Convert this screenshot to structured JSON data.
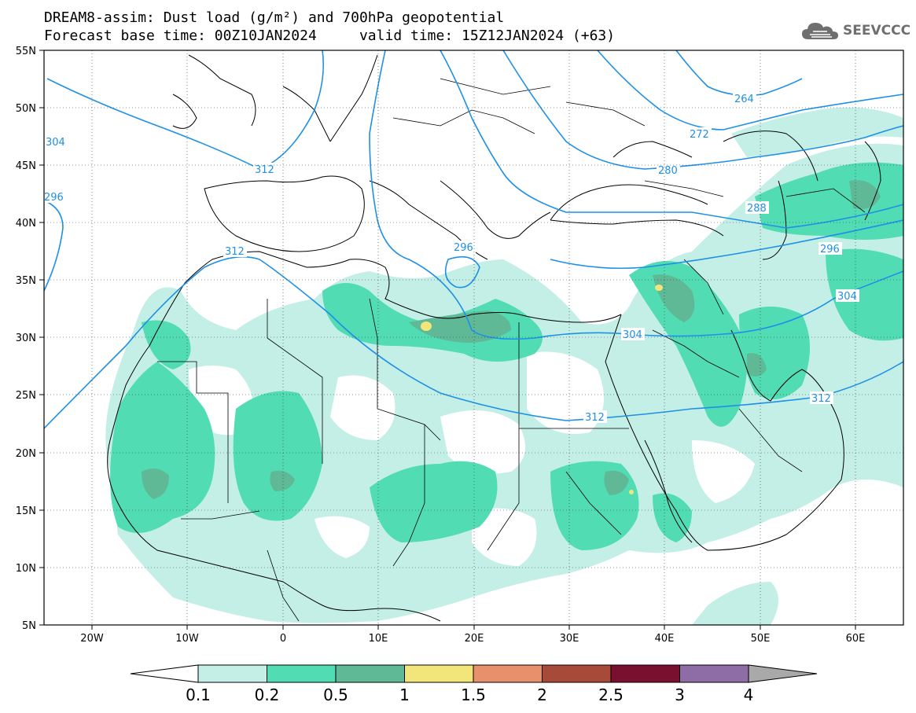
{
  "title": {
    "line1": "DREAM8-assim: Dust load (g/m²) and 700hPa geopotential",
    "line2": "Forecast base time: 00Z10JAN2024     valid time: 15Z12JAN2024 (+63)"
  },
  "logo": {
    "text": "SEEVCCC",
    "icon": "cloud-icon"
  },
  "axes": {
    "lat_labels": [
      "55N",
      "50N",
      "45N",
      "40N",
      "35N",
      "30N",
      "25N",
      "20N",
      "15N",
      "10N",
      "5N"
    ],
    "lon_labels": [
      "20W",
      "10W",
      "0",
      "10E",
      "20E",
      "30E",
      "40E",
      "50E",
      "60E"
    ]
  },
  "contour_labels": [
    "304",
    "312",
    "296",
    "312",
    "296",
    "304",
    "312",
    "264",
    "272",
    "280",
    "288",
    "296",
    "304",
    "312"
  ],
  "colorbar": {
    "ticks": [
      "0.1",
      "0.2",
      "0.5",
      "1",
      "1.5",
      "2",
      "2.5",
      "3",
      "4"
    ],
    "colors": [
      "#c4efe6",
      "#52dcb4",
      "#5fb997",
      "#f2e67a",
      "#e88f6b",
      "#a84a3a",
      "#7a1030",
      "#8e6ca6"
    ],
    "under_color": "#ffffff",
    "over_color": "#a9a9a9"
  },
  "contour_color": "#1e90e6"
}
